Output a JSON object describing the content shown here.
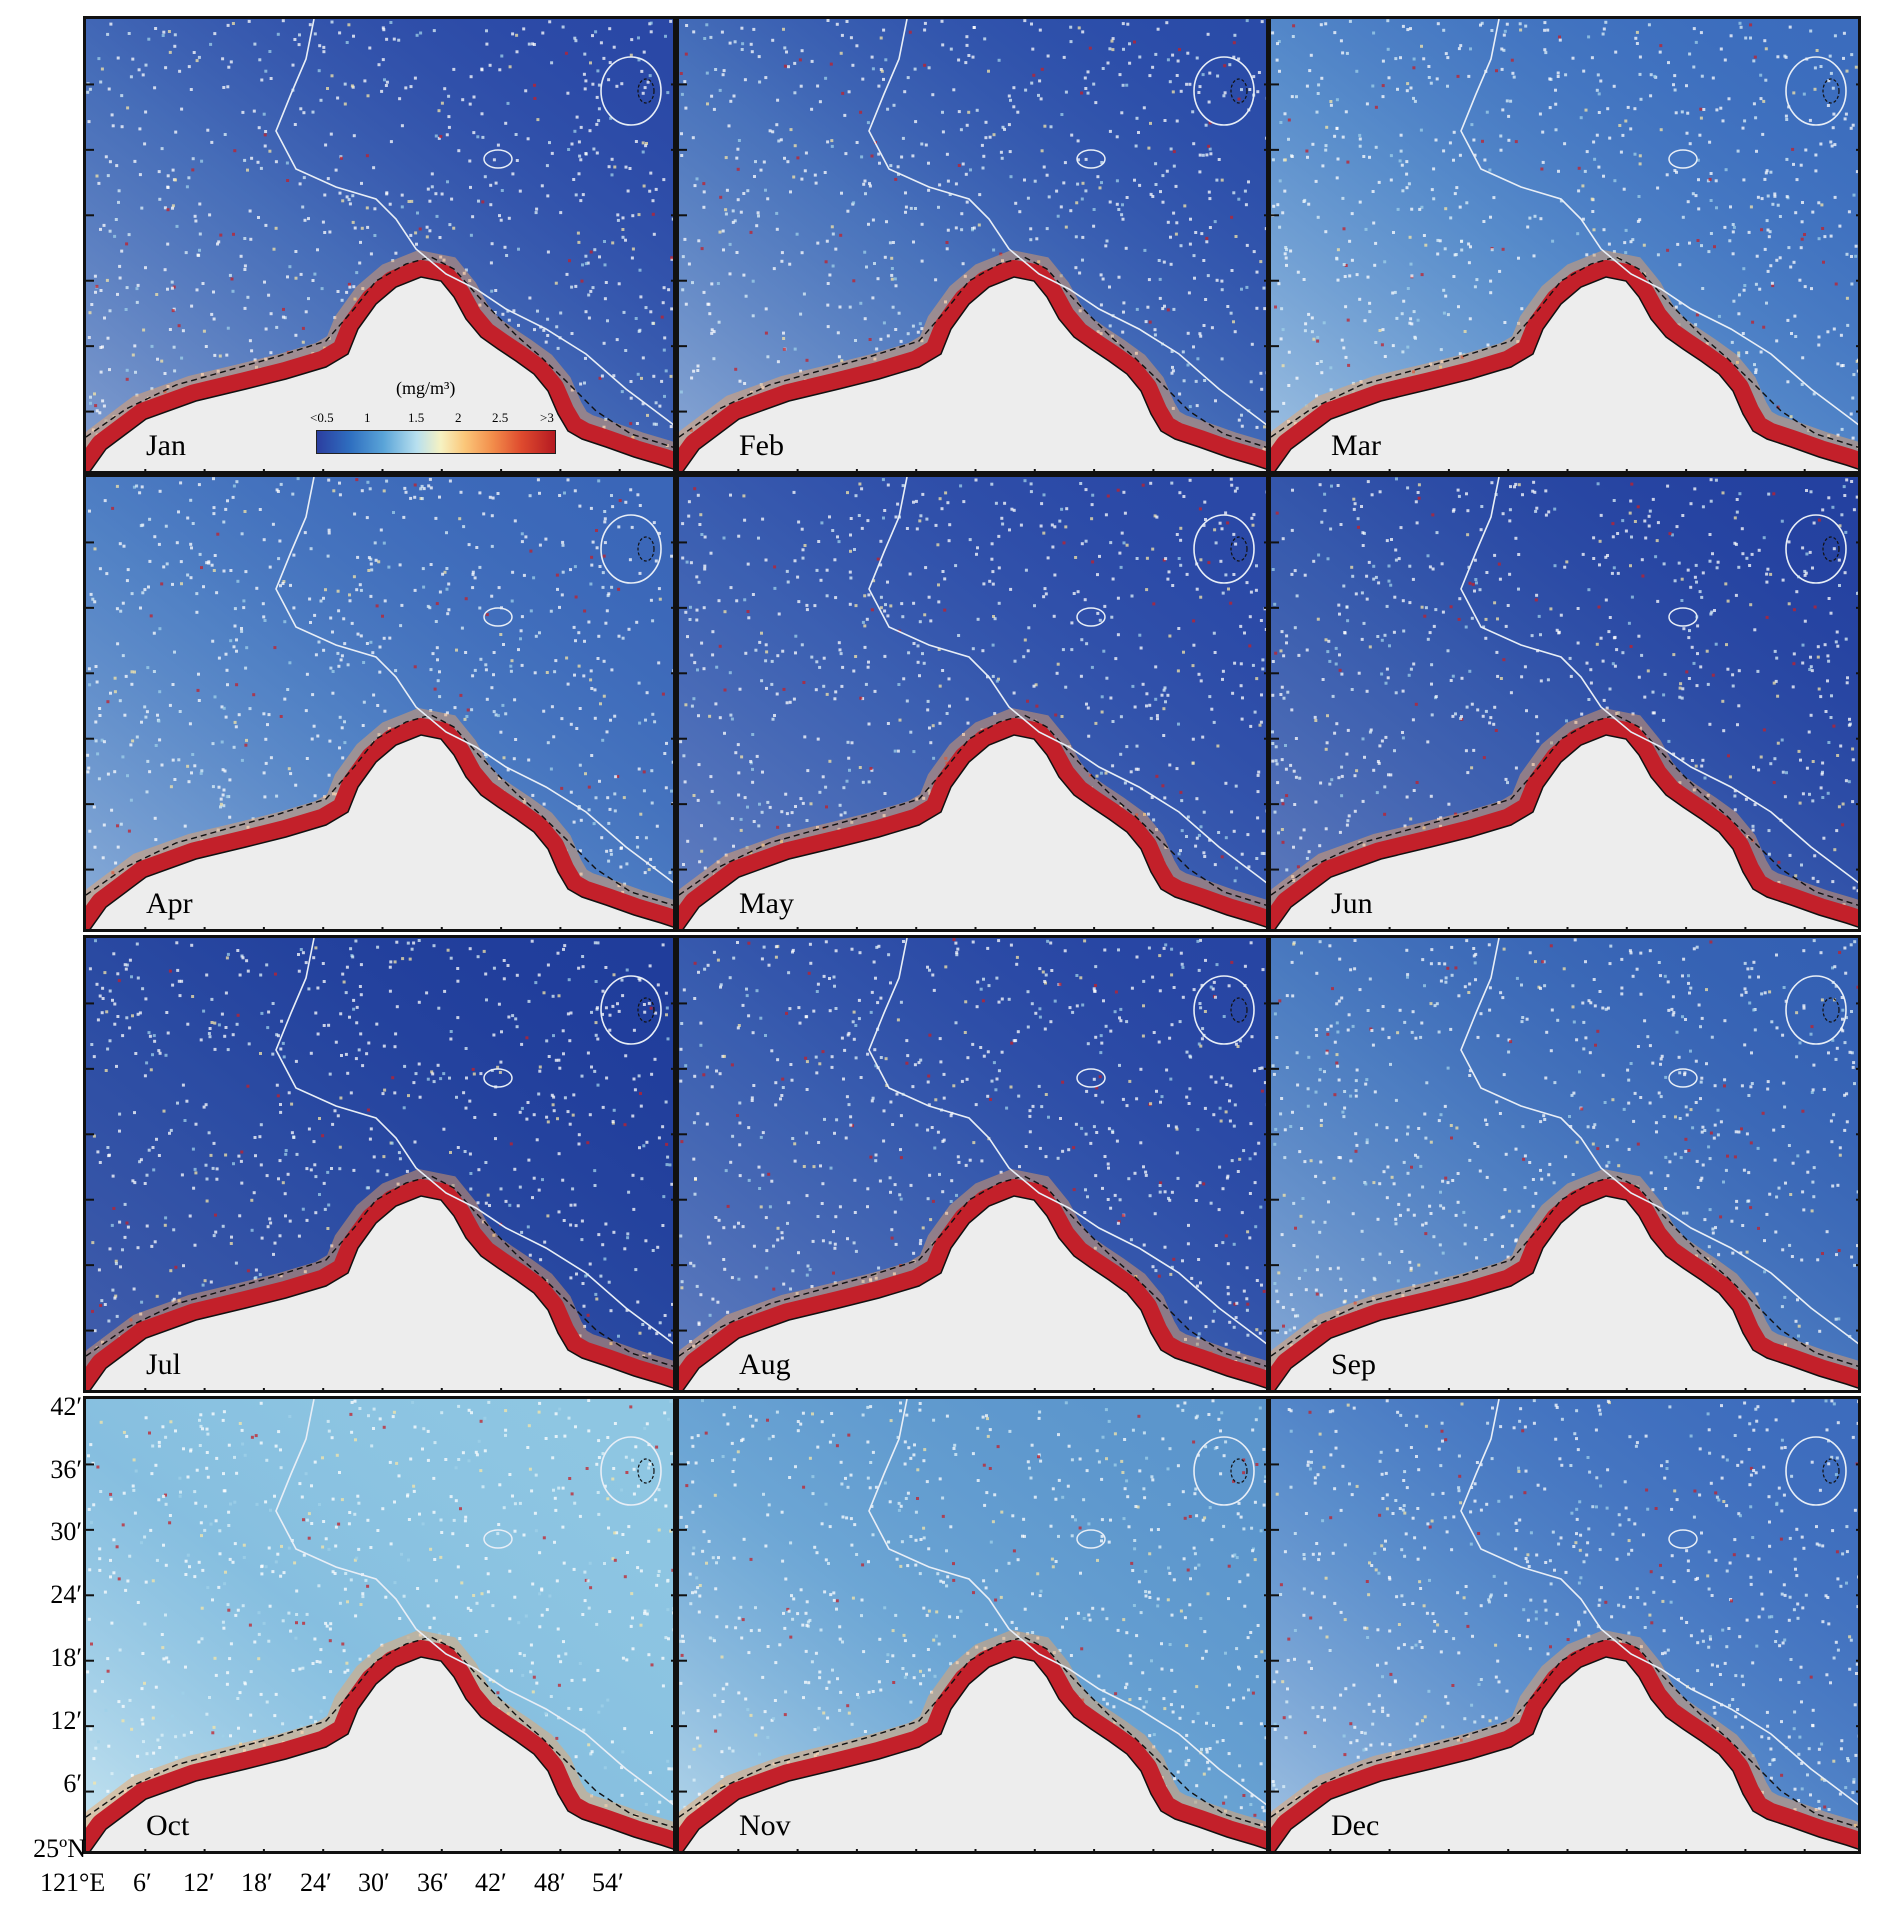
{
  "panels": [
    {
      "month": "Jan",
      "water_color": "#2a48a6",
      "haze": 0.55
    },
    {
      "month": "Feb",
      "water_color": "#2a4ba8",
      "haze": 0.6
    },
    {
      "month": "Mar",
      "water_color": "#3b6cbd",
      "haze": 0.7
    },
    {
      "month": "Apr",
      "water_color": "#3a66b8",
      "haze": 0.55
    },
    {
      "month": "May",
      "water_color": "#2a48a6",
      "haze": 0.35
    },
    {
      "month": "Jun",
      "water_color": "#2441a0",
      "haze": 0.35
    },
    {
      "month": "Jul",
      "water_color": "#203d9b",
      "haze": 0.2
    },
    {
      "month": "Aug",
      "water_color": "#2745a3",
      "haze": 0.35
    },
    {
      "month": "Sep",
      "water_color": "#3460b3",
      "haze": 0.55
    },
    {
      "month": "Oct",
      "water_color": "#8ec6e2",
      "haze": 0.9
    },
    {
      "month": "Nov",
      "water_color": "#5b95cc",
      "haze": 0.8
    },
    {
      "month": "Dec",
      "water_color": "#3d6cbd",
      "haze": 0.7
    }
  ],
  "legend": {
    "unit": "(mg/m³)",
    "ticks": [
      "<0.5",
      "1",
      "1.5",
      "2",
      "2.5",
      ">3"
    ]
  },
  "axes": {
    "y_labels": [
      "42′",
      "36′",
      "30′",
      "24′",
      "18′",
      "12′",
      "6′",
      "25ºN"
    ],
    "x_labels": [
      "121°E",
      "6′",
      "12′",
      "18′",
      "24′",
      "30′",
      "36′",
      "42′",
      "48′",
      "54′"
    ]
  },
  "colors": {
    "land": "#ededed",
    "coastal_high": "#c3202a",
    "isobath_white": "#e8eef6"
  }
}
